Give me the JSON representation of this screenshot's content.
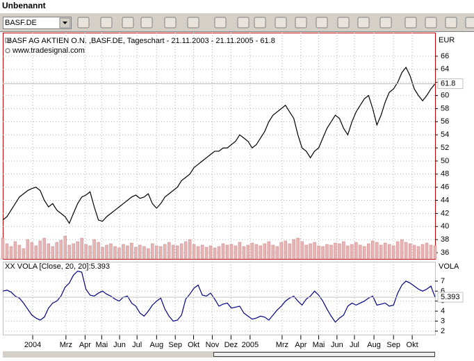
{
  "window": {
    "title": "Unbenannt"
  },
  "toolbar": {
    "symbol": "BASF.DE"
  },
  "chart_data": [
    {
      "type": "line",
      "title": "BASF AG AKTIEN O.N. ,BASF.DE, Tageschart - 21.11.2003 - 21.11.2005 - 61.8",
      "subtitle": "www.tradesignal.com",
      "y_axis_label": "EUR",
      "color": "#000000",
      "values": [
        41,
        41.5,
        42.5,
        43.5,
        44.5,
        45,
        45.5,
        45.8,
        46,
        45.5,
        44,
        43,
        43.5,
        42.5,
        42,
        41.5,
        40.5,
        42,
        43.5,
        44.5,
        44.8,
        45.3,
        43,
        41,
        40.8,
        41.5,
        42,
        42.5,
        43,
        43.5,
        44,
        44.5,
        44.8,
        44.3,
        44.5,
        45,
        43.5,
        42.8,
        43.5,
        44.5,
        45,
        45.5,
        46,
        47,
        47.5,
        48,
        49,
        49.5,
        50,
        50.5,
        51,
        51.5,
        51.5,
        52,
        52,
        52.5,
        53,
        54,
        53.5,
        53,
        52,
        52.5,
        53.5,
        54.5,
        56,
        57,
        57.5,
        58,
        58.5,
        57.5,
        56.5,
        54,
        52,
        51.5,
        50.5,
        51.5,
        52,
        53.5,
        55,
        56,
        57,
        56.5,
        55,
        54,
        56,
        57.5,
        58.5,
        59.5,
        60,
        58,
        55.5,
        57,
        59,
        60.5,
        61,
        62,
        63.5,
        64.3,
        63,
        61,
        60,
        59.2,
        60,
        61,
        61.8
      ],
      "volume": {
        "color": "#e6b4b4",
        "values": [
          30,
          22,
          18,
          25,
          20,
          15,
          28,
          24,
          19,
          26,
          30,
          22,
          18,
          24,
          27,
          33,
          20,
          22,
          25,
          30,
          21,
          19,
          28,
          24,
          17,
          20,
          22,
          18,
          16,
          21,
          19,
          23,
          17,
          20,
          18,
          15,
          22,
          19,
          18,
          21,
          24,
          20,
          19,
          22,
          25,
          28,
          21,
          18,
          20,
          17,
          19,
          16,
          18,
          22,
          20,
          21,
          19,
          24,
          18,
          20,
          23,
          21,
          19,
          22,
          25,
          20,
          18,
          24,
          26,
          22,
          28,
          30,
          25,
          20,
          22,
          24,
          19,
          18,
          21,
          20,
          23,
          22,
          25,
          19,
          21,
          24,
          20,
          18,
          22,
          26,
          24,
          20,
          23,
          21,
          19,
          25,
          28,
          24,
          22,
          20,
          18,
          21,
          23,
          20,
          19
        ]
      },
      "xlim": [
        0,
        104
      ],
      "ylim": [
        35.05,
        69.6
      ],
      "yticks": [
        36,
        38,
        40,
        42,
        44,
        46,
        48,
        50,
        52,
        54,
        56,
        58,
        60,
        62,
        64,
        66
      ],
      "grid": true
    },
    {
      "type": "line",
      "title": "XX VOLA [Close, 20, 20]:5.393",
      "y_axis_label": "VOLA",
      "color": "#000080",
      "values": [
        6,
        6.1,
        5.9,
        5.5,
        5.3,
        4.8,
        4.2,
        3.6,
        3.3,
        3.1,
        3.4,
        4.3,
        4.8,
        5,
        5.5,
        6.4,
        6.8,
        7.6,
        8,
        7.9,
        6.2,
        5.6,
        5.5,
        5.8,
        6,
        5.7,
        5.5,
        5.2,
        5,
        5.4,
        5.5,
        4.8,
        4.5,
        3.8,
        3.5,
        4,
        4.6,
        5,
        5.3,
        4.2,
        3.5,
        3,
        3.1,
        3.6,
        5.2,
        5.7,
        6.3,
        6.6,
        5.6,
        5.5,
        5.8,
        5.2,
        4.5,
        4.7,
        4.8,
        4.3,
        4.4,
        4.5,
        3.8,
        3.5,
        3.2,
        3.3,
        3.5,
        3.4,
        3.1,
        3.6,
        4.1,
        4.5,
        5,
        5.3,
        5.5,
        5,
        4.6,
        5.2,
        5.5,
        6,
        5.6,
        5,
        4.2,
        3.5,
        2.9,
        3.3,
        3.6,
        4.5,
        4.8,
        4.6,
        4.8,
        5,
        5.3,
        5.5,
        4.6,
        4.7,
        4.8,
        4.5,
        4.6,
        5.8,
        6.6,
        7,
        6.8,
        6.5,
        6.2,
        6,
        6.2,
        6.5,
        5.393
      ],
      "xlim": [
        0,
        104
      ],
      "xticks": [
        {
          "value": 7.2,
          "label": "2004"
        },
        {
          "value": 15.2,
          "label": "Mrz"
        },
        {
          "value": 19.8,
          "label": "Apr"
        },
        {
          "value": 23.8,
          "label": "Mai"
        },
        {
          "value": 28.1,
          "label": "Jun"
        },
        {
          "value": 32.3,
          "label": "Jul"
        },
        {
          "value": 37,
          "label": "Aug"
        },
        {
          "value": 41.5,
          "label": "Sep"
        },
        {
          "value": 45.9,
          "label": "Okt"
        },
        {
          "value": 50.4,
          "label": "Nov"
        },
        {
          "value": 54.9,
          "label": "Dez"
        },
        {
          "value": 59.5,
          "label": "2005"
        },
        {
          "value": 67.2,
          "label": "Mrz"
        },
        {
          "value": 71.7,
          "label": "Apr"
        },
        {
          "value": 76,
          "label": "Mai"
        },
        {
          "value": 80.4,
          "label": "Jun"
        },
        {
          "value": 84.6,
          "label": "Jul"
        },
        {
          "value": 89.3,
          "label": "Aug"
        },
        {
          "value": 94,
          "label": "Sep"
        },
        {
          "value": 98.5,
          "label": "Okt"
        }
      ],
      "ylim": [
        1.65,
        8.94
      ],
      "yticks": [
        2,
        3,
        4,
        5,
        6,
        7
      ],
      "grid": true
    }
  ]
}
